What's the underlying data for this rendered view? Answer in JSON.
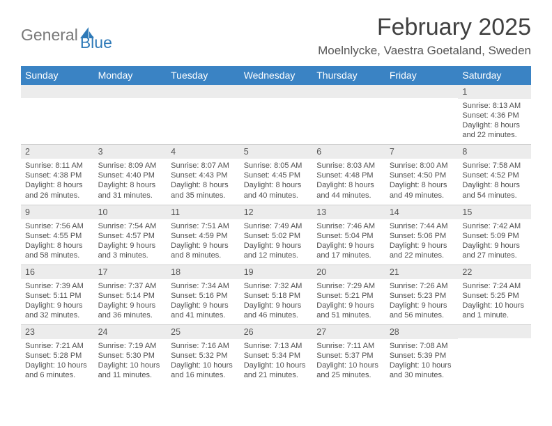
{
  "brand": {
    "general": "General",
    "blue": "Blue"
  },
  "title": "February 2025",
  "location": "Moelnlycke, Vaestra Goetaland, Sweden",
  "colors": {
    "header_bg": "#3a83c4",
    "header_text": "#ffffff",
    "daynum_bg": "#ececec",
    "border": "#cfcfcf",
    "text": "#4f4f4f",
    "title_text": "#414141",
    "brand_gray": "#787878",
    "brand_blue": "#2f7ab8",
    "page_bg": "#ffffff"
  },
  "day_names": [
    "Sunday",
    "Monday",
    "Tuesday",
    "Wednesday",
    "Thursday",
    "Friday",
    "Saturday"
  ],
  "weeks": [
    [
      {
        "n": ""
      },
      {
        "n": ""
      },
      {
        "n": ""
      },
      {
        "n": ""
      },
      {
        "n": ""
      },
      {
        "n": ""
      },
      {
        "n": "1",
        "sr": "Sunrise: 8:13 AM",
        "ss": "Sunset: 4:36 PM",
        "d1": "Daylight: 8 hours",
        "d2": "and 22 minutes."
      }
    ],
    [
      {
        "n": "2",
        "sr": "Sunrise: 8:11 AM",
        "ss": "Sunset: 4:38 PM",
        "d1": "Daylight: 8 hours",
        "d2": "and 26 minutes."
      },
      {
        "n": "3",
        "sr": "Sunrise: 8:09 AM",
        "ss": "Sunset: 4:40 PM",
        "d1": "Daylight: 8 hours",
        "d2": "and 31 minutes."
      },
      {
        "n": "4",
        "sr": "Sunrise: 8:07 AM",
        "ss": "Sunset: 4:43 PM",
        "d1": "Daylight: 8 hours",
        "d2": "and 35 minutes."
      },
      {
        "n": "5",
        "sr": "Sunrise: 8:05 AM",
        "ss": "Sunset: 4:45 PM",
        "d1": "Daylight: 8 hours",
        "d2": "and 40 minutes."
      },
      {
        "n": "6",
        "sr": "Sunrise: 8:03 AM",
        "ss": "Sunset: 4:48 PM",
        "d1": "Daylight: 8 hours",
        "d2": "and 44 minutes."
      },
      {
        "n": "7",
        "sr": "Sunrise: 8:00 AM",
        "ss": "Sunset: 4:50 PM",
        "d1": "Daylight: 8 hours",
        "d2": "and 49 minutes."
      },
      {
        "n": "8",
        "sr": "Sunrise: 7:58 AM",
        "ss": "Sunset: 4:52 PM",
        "d1": "Daylight: 8 hours",
        "d2": "and 54 minutes."
      }
    ],
    [
      {
        "n": "9",
        "sr": "Sunrise: 7:56 AM",
        "ss": "Sunset: 4:55 PM",
        "d1": "Daylight: 8 hours",
        "d2": "and 58 minutes."
      },
      {
        "n": "10",
        "sr": "Sunrise: 7:54 AM",
        "ss": "Sunset: 4:57 PM",
        "d1": "Daylight: 9 hours",
        "d2": "and 3 minutes."
      },
      {
        "n": "11",
        "sr": "Sunrise: 7:51 AM",
        "ss": "Sunset: 4:59 PM",
        "d1": "Daylight: 9 hours",
        "d2": "and 8 minutes."
      },
      {
        "n": "12",
        "sr": "Sunrise: 7:49 AM",
        "ss": "Sunset: 5:02 PM",
        "d1": "Daylight: 9 hours",
        "d2": "and 12 minutes."
      },
      {
        "n": "13",
        "sr": "Sunrise: 7:46 AM",
        "ss": "Sunset: 5:04 PM",
        "d1": "Daylight: 9 hours",
        "d2": "and 17 minutes."
      },
      {
        "n": "14",
        "sr": "Sunrise: 7:44 AM",
        "ss": "Sunset: 5:06 PM",
        "d1": "Daylight: 9 hours",
        "d2": "and 22 minutes."
      },
      {
        "n": "15",
        "sr": "Sunrise: 7:42 AM",
        "ss": "Sunset: 5:09 PM",
        "d1": "Daylight: 9 hours",
        "d2": "and 27 minutes."
      }
    ],
    [
      {
        "n": "16",
        "sr": "Sunrise: 7:39 AM",
        "ss": "Sunset: 5:11 PM",
        "d1": "Daylight: 9 hours",
        "d2": "and 32 minutes."
      },
      {
        "n": "17",
        "sr": "Sunrise: 7:37 AM",
        "ss": "Sunset: 5:14 PM",
        "d1": "Daylight: 9 hours",
        "d2": "and 36 minutes."
      },
      {
        "n": "18",
        "sr": "Sunrise: 7:34 AM",
        "ss": "Sunset: 5:16 PM",
        "d1": "Daylight: 9 hours",
        "d2": "and 41 minutes."
      },
      {
        "n": "19",
        "sr": "Sunrise: 7:32 AM",
        "ss": "Sunset: 5:18 PM",
        "d1": "Daylight: 9 hours",
        "d2": "and 46 minutes."
      },
      {
        "n": "20",
        "sr": "Sunrise: 7:29 AM",
        "ss": "Sunset: 5:21 PM",
        "d1": "Daylight: 9 hours",
        "d2": "and 51 minutes."
      },
      {
        "n": "21",
        "sr": "Sunrise: 7:26 AM",
        "ss": "Sunset: 5:23 PM",
        "d1": "Daylight: 9 hours",
        "d2": "and 56 minutes."
      },
      {
        "n": "22",
        "sr": "Sunrise: 7:24 AM",
        "ss": "Sunset: 5:25 PM",
        "d1": "Daylight: 10 hours",
        "d2": "and 1 minute."
      }
    ],
    [
      {
        "n": "23",
        "sr": "Sunrise: 7:21 AM",
        "ss": "Sunset: 5:28 PM",
        "d1": "Daylight: 10 hours",
        "d2": "and 6 minutes."
      },
      {
        "n": "24",
        "sr": "Sunrise: 7:19 AM",
        "ss": "Sunset: 5:30 PM",
        "d1": "Daylight: 10 hours",
        "d2": "and 11 minutes."
      },
      {
        "n": "25",
        "sr": "Sunrise: 7:16 AM",
        "ss": "Sunset: 5:32 PM",
        "d1": "Daylight: 10 hours",
        "d2": "and 16 minutes."
      },
      {
        "n": "26",
        "sr": "Sunrise: 7:13 AM",
        "ss": "Sunset: 5:34 PM",
        "d1": "Daylight: 10 hours",
        "d2": "and 21 minutes."
      },
      {
        "n": "27",
        "sr": "Sunrise: 7:11 AM",
        "ss": "Sunset: 5:37 PM",
        "d1": "Daylight: 10 hours",
        "d2": "and 25 minutes."
      },
      {
        "n": "28",
        "sr": "Sunrise: 7:08 AM",
        "ss": "Sunset: 5:39 PM",
        "d1": "Daylight: 10 hours",
        "d2": "and 30 minutes."
      },
      {
        "n": ""
      }
    ]
  ]
}
